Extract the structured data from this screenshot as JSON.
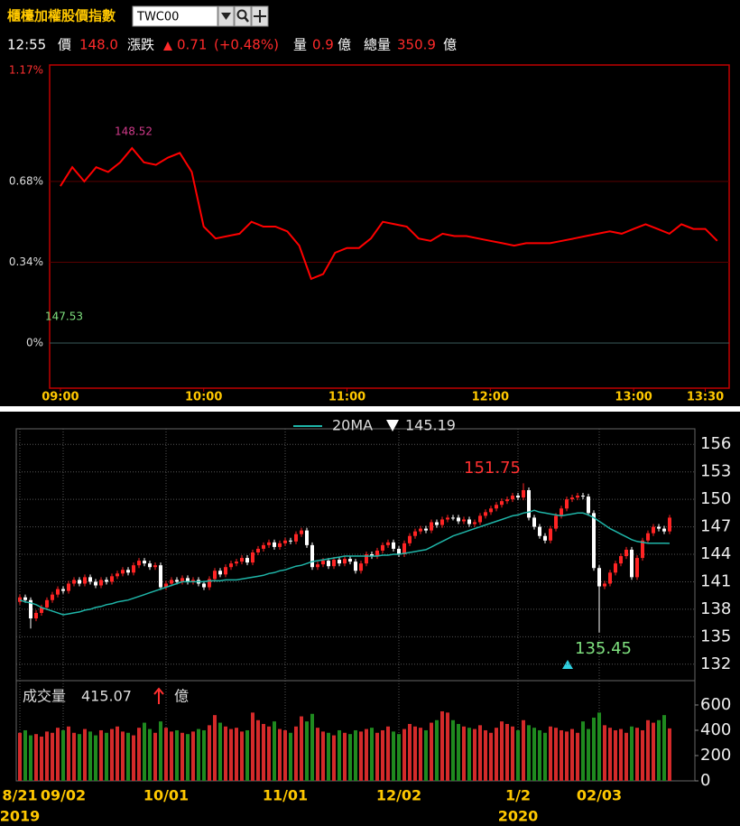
{
  "header": {
    "title": "櫃檯加權股價指數",
    "code": "TWC00"
  },
  "quote": {
    "time": "12:55",
    "price_label": "價",
    "price": "148.0",
    "change_label": "漲跌",
    "change": "0.71",
    "change_pct": "(+0.48%)",
    "vol_label": "量",
    "vol": "0.9",
    "vol_unit": "億",
    "total_label": "總量",
    "total": "350.9",
    "total_unit": "億"
  },
  "chart_data": [
    {
      "type": "line",
      "color": "#ff0000",
      "x": [
        0,
        5,
        10,
        15,
        20,
        25,
        30,
        35,
        40,
        45,
        50,
        55,
        60,
        65,
        70,
        75,
        80,
        85,
        90,
        95,
        100,
        105,
        110,
        115,
        120,
        125,
        130,
        135,
        140,
        145,
        150,
        155,
        160,
        165,
        170,
        175,
        180,
        185,
        190,
        195,
        200,
        205,
        210,
        215,
        220,
        225,
        230,
        235,
        240,
        245,
        250,
        255,
        260,
        265,
        270,
        275
      ],
      "values": [
        0.66,
        0.74,
        0.68,
        0.74,
        0.72,
        0.76,
        0.82,
        0.76,
        0.75,
        0.78,
        0.8,
        0.72,
        0.49,
        0.44,
        0.45,
        0.46,
        0.51,
        0.49,
        0.49,
        0.47,
        0.41,
        0.27,
        0.29,
        0.38,
        0.4,
        0.4,
        0.44,
        0.51,
        0.5,
        0.49,
        0.44,
        0.43,
        0.46,
        0.45,
        0.45,
        0.44,
        0.43,
        0.42,
        0.41,
        0.42,
        0.42,
        0.42,
        0.43,
        0.44,
        0.45,
        0.46,
        0.47,
        0.46,
        0.48,
        0.5,
        0.48,
        0.46,
        0.5,
        0.48,
        0.48,
        0.43
      ],
      "xlim": [
        -4.5,
        280
      ],
      "xticks": [
        {
          "value": 0,
          "label": "09:00"
        },
        {
          "value": 60,
          "label": "10:00"
        },
        {
          "value": 120,
          "label": "11:00"
        },
        {
          "value": 180,
          "label": "12:00"
        },
        {
          "value": 240,
          "label": "13:00"
        },
        {
          "value": 270,
          "label": "13:30"
        }
      ],
      "ylim": [
        -0.19,
        1.17
      ],
      "yticks": [
        {
          "value": 0,
          "label": "0%"
        },
        {
          "value": 0.34,
          "label": "0.34%"
        },
        {
          "value": 0.68,
          "label": "0.68%"
        },
        {
          "value": 1.17,
          "label": "1.17%"
        }
      ],
      "annotations": [
        "148.52",
        "147.53"
      ]
    },
    {
      "type": "candlestick",
      "up_color": "#ff2424",
      "down_color": "#ffffff",
      "categories": [
        "8/21",
        null,
        null,
        null,
        null,
        null,
        null,
        null,
        "09/02",
        null,
        null,
        null,
        null,
        null,
        null,
        null,
        null,
        null,
        null,
        null,
        null,
        null,
        null,
        null,
        null,
        null,
        null,
        "10/01",
        null,
        null,
        null,
        null,
        null,
        null,
        null,
        null,
        null,
        null,
        null,
        null,
        null,
        null,
        null,
        null,
        null,
        null,
        null,
        null,
        null,
        "11/01",
        null,
        null,
        null,
        null,
        null,
        null,
        null,
        null,
        null,
        null,
        null,
        null,
        null,
        null,
        null,
        null,
        null,
        null,
        null,
        null,
        "12/02",
        null,
        null,
        null,
        null,
        null,
        null,
        null,
        null,
        null,
        null,
        null,
        null,
        null,
        null,
        null,
        null,
        null,
        null,
        null,
        null,
        null,
        "1/2",
        null,
        null,
        null,
        null,
        null,
        null,
        null,
        null,
        null,
        null,
        null,
        null,
        null,
        null,
        "02/03",
        null,
        null,
        null,
        null,
        null,
        null,
        null,
        null,
        null,
        null,
        null,
        null,
        null
      ],
      "year_labels": [
        "2019",
        "2020"
      ],
      "open": [
        138.8,
        139.3,
        139.0,
        137.0,
        137.6,
        138.2,
        139.0,
        139.6,
        140.2,
        140.0,
        140.8,
        141.2,
        140.8,
        141.5,
        141.0,
        140.6,
        141.2,
        141.0,
        141.6,
        141.9,
        142.3,
        142.0,
        142.8,
        143.3,
        143.0,
        142.6,
        142.8,
        140.4,
        140.8,
        141.2,
        141.0,
        141.4,
        141.0,
        141.2,
        140.8,
        140.4,
        141.3,
        142.2,
        141.8,
        142.6,
        143.0,
        143.2,
        143.6,
        143.1,
        144.2,
        144.6,
        145.0,
        145.3,
        144.8,
        145.2,
        145.5,
        145.4,
        146.2,
        146.6,
        145.0,
        142.6,
        142.9,
        143.3,
        142.7,
        143.4,
        143.0,
        143.5,
        143.2,
        142.2,
        143.0,
        144.0,
        143.8,
        144.4,
        145.0,
        145.3,
        144.6,
        144.0,
        145.2,
        146.0,
        146.5,
        146.8,
        146.6,
        147.5,
        147.2,
        147.8,
        148.0,
        148.0,
        147.6,
        147.8,
        147.3,
        147.5,
        148.2,
        148.6,
        149.0,
        149.4,
        149.8,
        150.0,
        150.4,
        150.2,
        151.0,
        148.0,
        147.0,
        146.0,
        145.5,
        146.8,
        148.2,
        149.0,
        150.0,
        150.2,
        150.4,
        150.3,
        148.5,
        142.5,
        140.5,
        140.8,
        142.0,
        143.0,
        143.8,
        144.5,
        141.5,
        143.6,
        145.5,
        146.3,
        147.0,
        146.8,
        146.5
      ],
      "high": [
        139.6,
        139.6,
        139.3,
        137.9,
        138.5,
        139.3,
        139.9,
        140.5,
        140.5,
        141.1,
        141.5,
        141.5,
        141.8,
        141.8,
        141.3,
        141.5,
        141.5,
        141.9,
        142.2,
        142.6,
        142.6,
        143.1,
        143.6,
        143.6,
        143.3,
        143.1,
        143.1,
        141.1,
        141.5,
        141.5,
        141.7,
        141.7,
        141.5,
        141.5,
        141.1,
        141.6,
        142.5,
        142.5,
        142.9,
        143.3,
        143.5,
        143.9,
        143.9,
        144.5,
        144.9,
        145.3,
        145.6,
        145.6,
        145.5,
        145.8,
        145.8,
        146.5,
        146.9,
        146.9,
        145.3,
        143.2,
        143.6,
        143.6,
        143.7,
        143.7,
        143.8,
        143.8,
        143.5,
        143.3,
        144.3,
        144.3,
        144.7,
        145.3,
        145.6,
        145.6,
        144.9,
        145.5,
        146.3,
        146.8,
        147.1,
        147.1,
        147.8,
        147.8,
        148.1,
        148.3,
        148.3,
        148.3,
        148.1,
        148.1,
        147.8,
        148.5,
        148.9,
        149.3,
        149.7,
        150.1,
        150.3,
        150.7,
        150.7,
        151.75,
        151.3,
        148.3,
        147.3,
        146.3,
        147.1,
        148.5,
        149.3,
        150.3,
        150.5,
        150.7,
        150.7,
        150.6,
        148.8,
        142.8,
        141.1,
        142.3,
        143.3,
        144.1,
        144.8,
        144.8,
        143.9,
        145.8,
        146.6,
        147.3,
        147.3,
        147.1,
        148.3
      ],
      "low": [
        138.5,
        138.7,
        135.9,
        136.7,
        137.3,
        137.9,
        138.7,
        139.3,
        139.7,
        139.7,
        140.5,
        140.5,
        140.5,
        140.7,
        140.3,
        140.3,
        140.7,
        140.7,
        141.3,
        141.6,
        141.7,
        141.7,
        142.5,
        142.7,
        142.3,
        142.3,
        140.1,
        140.1,
        140.5,
        140.7,
        140.7,
        140.7,
        140.7,
        140.5,
        140.1,
        140.1,
        141.0,
        141.5,
        141.5,
        142.3,
        142.7,
        142.9,
        142.8,
        142.8,
        143.9,
        144.3,
        144.7,
        144.5,
        144.5,
        144.9,
        145.1,
        145.1,
        145.9,
        144.7,
        142.3,
        142.3,
        142.6,
        142.4,
        142.4,
        142.7,
        142.7,
        142.9,
        141.9,
        141.9,
        142.7,
        143.5,
        143.5,
        144.1,
        144.7,
        144.3,
        143.7,
        143.7,
        144.9,
        145.7,
        146.2,
        146.3,
        146.3,
        146.9,
        146.9,
        147.5,
        147.7,
        147.3,
        147.3,
        147.0,
        147.0,
        147.2,
        147.9,
        148.3,
        148.7,
        149.1,
        149.5,
        149.7,
        149.9,
        149.9,
        147.7,
        146.7,
        145.7,
        145.2,
        145.2,
        146.5,
        147.9,
        148.7,
        149.7,
        149.9,
        150.0,
        148.2,
        142.2,
        135.45,
        140.2,
        140.5,
        141.7,
        142.7,
        143.5,
        141.2,
        141.2,
        143.3,
        145.2,
        146.0,
        146.5,
        146.2,
        146.2
      ],
      "close": [
        139.3,
        139.0,
        137.0,
        137.6,
        138.2,
        139.0,
        139.6,
        140.2,
        140.0,
        140.8,
        141.2,
        140.8,
        141.5,
        141.0,
        140.6,
        141.2,
        141.0,
        141.6,
        141.9,
        142.3,
        142.0,
        142.8,
        143.3,
        143.0,
        142.6,
        142.8,
        140.4,
        140.8,
        141.2,
        141.0,
        141.4,
        141.0,
        141.2,
        140.8,
        140.4,
        141.3,
        142.2,
        141.8,
        142.6,
        143.0,
        143.2,
        143.6,
        143.1,
        144.2,
        144.6,
        145.0,
        145.3,
        144.8,
        145.2,
        145.5,
        145.4,
        146.2,
        146.6,
        145.0,
        142.6,
        142.9,
        143.3,
        142.7,
        143.4,
        143.0,
        143.5,
        143.2,
        142.2,
        143.0,
        144.0,
        143.8,
        144.4,
        145.0,
        145.3,
        144.6,
        144.0,
        145.2,
        146.0,
        146.5,
        146.8,
        146.6,
        147.5,
        147.2,
        147.8,
        148.0,
        148.0,
        147.6,
        147.8,
        147.3,
        147.5,
        148.2,
        148.6,
        149.0,
        149.4,
        149.8,
        150.0,
        150.4,
        150.2,
        151.0,
        148.0,
        147.0,
        146.0,
        145.5,
        146.8,
        148.2,
        149.0,
        150.0,
        150.2,
        150.4,
        150.3,
        148.5,
        142.5,
        140.5,
        140.8,
        142.0,
        143.0,
        143.8,
        144.5,
        141.5,
        143.6,
        145.5,
        146.3,
        147.0,
        146.8,
        146.5,
        148.0
      ],
      "series": [
        {
          "name": "20MA",
          "color": "#1fb5a8",
          "values": [
            139.0,
            138.8,
            138.7,
            138.5,
            138.2,
            138.0,
            137.8,
            137.6,
            137.4,
            137.5,
            137.6,
            137.7,
            137.9,
            138.0,
            138.2,
            138.3,
            138.5,
            138.6,
            138.8,
            138.9,
            139.0,
            139.2,
            139.4,
            139.6,
            139.8,
            140.0,
            140.2,
            140.4,
            140.6,
            140.8,
            141.0,
            141.0,
            141.0,
            141.0,
            141.0,
            141.1,
            141.1,
            141.1,
            141.2,
            141.2,
            141.2,
            141.3,
            141.4,
            141.5,
            141.6,
            141.7,
            141.9,
            142.0,
            142.2,
            142.3,
            142.5,
            142.7,
            142.8,
            143.0,
            143.2,
            143.3,
            143.4,
            143.5,
            143.6,
            143.7,
            143.8,
            143.8,
            143.8,
            143.8,
            143.8,
            143.8,
            143.8,
            143.9,
            143.9,
            144.0,
            144.0,
            144.1,
            144.2,
            144.3,
            144.4,
            144.5,
            144.8,
            145.1,
            145.4,
            145.7,
            146.0,
            146.2,
            146.4,
            146.6,
            146.8,
            147.0,
            147.2,
            147.4,
            147.6,
            147.8,
            148.0,
            148.2,
            148.3,
            148.5,
            148.6,
            148.8,
            148.6,
            148.5,
            148.4,
            148.3,
            148.2,
            148.3,
            148.4,
            148.5,
            148.5,
            148.3,
            148.0,
            147.6,
            147.2,
            146.8,
            146.5,
            146.2,
            145.9,
            145.6,
            145.4,
            145.3,
            145.2,
            145.2,
            145.2,
            145.2,
            145.19
          ]
        }
      ],
      "ylim": [
        130.4,
        157.7
      ],
      "yticks": [
        132,
        135,
        138,
        141,
        144,
        147,
        150,
        153,
        156
      ],
      "volume": {
        "label": "成交量",
        "unit": "億",
        "up_color": "#d42a2a",
        "down_color": "#1f8a1f",
        "ylim": [
          0,
          771
        ],
        "yticks": [
          0,
          200,
          400,
          600
        ],
        "values": [
          380,
          400,
          360,
          370,
          350,
          390,
          380,
          420,
          400,
          430,
          380,
          370,
          410,
          390,
          360,
          400,
          380,
          410,
          430,
          390,
          380,
          360,
          420,
          460,
          410,
          380,
          470,
          420,
          390,
          400,
          380,
          370,
          390,
          410,
          400,
          440,
          520,
          460,
          430,
          410,
          420,
          390,
          400,
          540,
          480,
          450,
          430,
          470,
          410,
          400,
          380,
          430,
          510,
          470,
          530,
          420,
          390,
          380,
          360,
          400,
          380,
          370,
          400,
          390,
          410,
          420,
          380,
          400,
          430,
          390,
          370,
          410,
          450,
          430,
          420,
          400,
          460,
          480,
          550,
          540,
          480,
          450,
          430,
          420,
          410,
          440,
          400,
          380,
          420,
          470,
          450,
          430,
          400,
          480,
          440,
          420,
          400,
          380,
          430,
          420,
          400,
          390,
          410,
          380,
          470,
          410,
          500,
          540,
          440,
          420,
          400,
          410,
          380,
          430,
          420,
          400,
          480,
          460,
          480,
          520,
          415.07
        ]
      }
    }
  ]
}
